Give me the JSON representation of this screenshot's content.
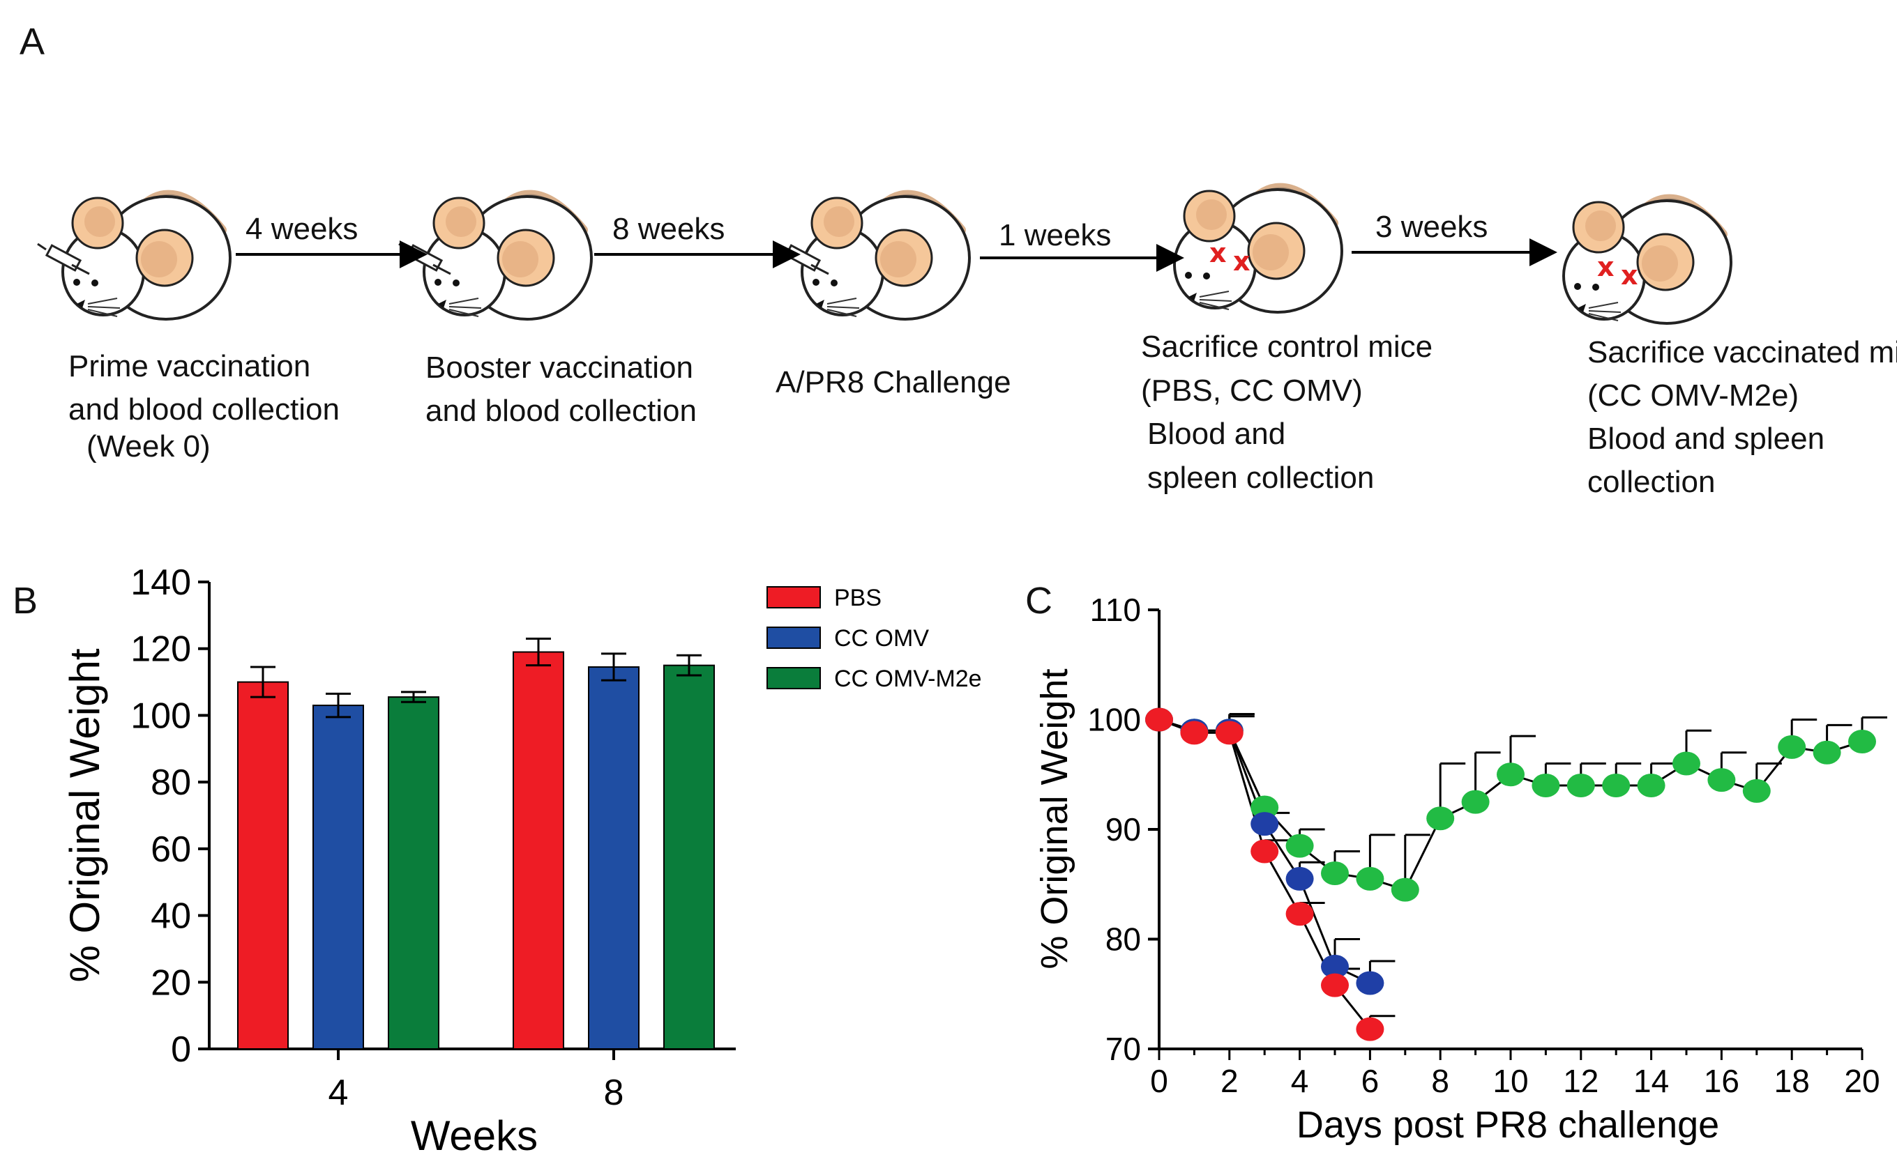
{
  "panel_a": {
    "label": "A",
    "intervals": [
      "4 weeks",
      "8 weeks",
      "1 weeks",
      "3 weeks"
    ],
    "steps": [
      {
        "lines": [
          "Prime vaccination",
          "and blood collection",
          "(Week 0)"
        ]
      },
      {
        "lines": [
          "Booster vaccination",
          "and blood collection"
        ]
      },
      {
        "lines": [
          "A/PR8 Challenge"
        ]
      },
      {
        "lines": [
          "Sacrifice control mice",
          "(PBS, CC OMV)",
          "Blood and",
          "spleen collection"
        ]
      },
      {
        "lines": [
          "Sacrifice vaccinated mice",
          "(CC OMV-M2e)",
          "Blood and spleen",
          "collection"
        ]
      }
    ],
    "colors": {
      "ear": "#f5c79a",
      "tail": "#d9b08c",
      "x_mark": "#e02020"
    }
  },
  "chart_data": [
    {
      "panel": "B",
      "type": "bar",
      "categories": [
        "4",
        "8"
      ],
      "xlabel": "Weeks",
      "ylabel": "% Original Weight",
      "ylim": [
        0,
        140
      ],
      "yticks": [
        "0",
        "20",
        "40",
        "60",
        "80",
        "100",
        "120",
        "140"
      ],
      "legend_position": "top-right",
      "series": [
        {
          "name": "PBS",
          "color": "#ee1c25",
          "values": [
            110,
            119
          ],
          "errors": [
            4.5,
            4
          ]
        },
        {
          "name": "CC OMV",
          "color": "#1f4ea3",
          "values": [
            103,
            114.5
          ],
          "errors": [
            3.5,
            4
          ]
        },
        {
          "name": "CC OMV-M2e",
          "color": "#0a7d3b",
          "values": [
            105.5,
            115
          ],
          "errors": [
            1.5,
            3
          ]
        }
      ]
    },
    {
      "panel": "C",
      "type": "line",
      "xlabel": "Days post PR8 challenge",
      "ylabel": "% Original Weight",
      "xlim": [
        0,
        20
      ],
      "ylim": [
        70,
        110
      ],
      "xticks": [
        "0",
        "2",
        "4",
        "6",
        "8",
        "10",
        "12",
        "14",
        "16",
        "18",
        "20"
      ],
      "yticks": [
        "70",
        "80",
        "90",
        "100",
        "110"
      ],
      "series": [
        {
          "name": "CC OMV-M2e",
          "color": "#22bb44",
          "x": [
            0,
            1,
            2,
            3,
            4,
            5,
            6,
            7,
            8,
            9,
            10,
            11,
            12,
            13,
            14,
            15,
            16,
            17,
            18,
            19,
            20
          ],
          "y": [
            100,
            99,
            99,
            92,
            88.5,
            86,
            85.5,
            84.5,
            91,
            92.5,
            95,
            94,
            94,
            94,
            94,
            96,
            94.5,
            93.5,
            97.5,
            97,
            98
          ],
          "errors": [
            0,
            0,
            1.5,
            0,
            1.5,
            2,
            4,
            5,
            5,
            4.5,
            3.5,
            2,
            2,
            2,
            2,
            3,
            2.5,
            2.5,
            2.5,
            2.5,
            2.2
          ]
        },
        {
          "name": "CC OMV",
          "color": "#1f3fa6",
          "x": [
            0,
            1,
            2,
            3,
            4,
            5,
            6
          ],
          "y": [
            100,
            99,
            99,
            90.5,
            85.5,
            77.5,
            76
          ],
          "errors": [
            0,
            0,
            1.5,
            1,
            1.5,
            2.5,
            2
          ]
        },
        {
          "name": "PBS",
          "color": "#ee1c25",
          "x": [
            0,
            1,
            2,
            3,
            4,
            5,
            6
          ],
          "y": [
            100,
            98.8,
            98.8,
            88,
            82.3,
            75.8,
            71.8
          ],
          "errors": [
            0,
            0,
            1.5,
            1,
            1,
            1.5,
            1.2
          ]
        }
      ]
    }
  ]
}
